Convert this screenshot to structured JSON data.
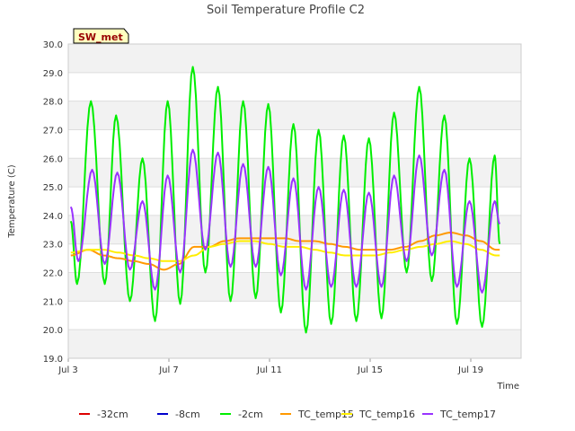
{
  "chart_data": {
    "type": "line",
    "title": "Soil Temperature Profile C2",
    "xlabel": "Time",
    "ylabel": "Temperature (C)",
    "station_label": "SW_met",
    "ylim": [
      19.0,
      30.0
    ],
    "xlim": [
      "2024-07-03",
      "2024-07-21"
    ],
    "yticks": [
      "19.0",
      "20.0",
      "21.0",
      "22.0",
      "23.0",
      "24.0",
      "25.0",
      "26.0",
      "27.0",
      "28.0",
      "29.0",
      "30.0"
    ],
    "xticks": [
      {
        "label": "Jul 3",
        "date": "2024-07-03"
      },
      {
        "label": "Jul 7",
        "date": "2024-07-07"
      },
      {
        "label": "Jul 11",
        "date": "2024-07-11"
      },
      {
        "label": "Jul 15",
        "date": "2024-07-15"
      },
      {
        "label": "Jul 19",
        "date": "2024-07-19"
      }
    ],
    "grid": true,
    "legend_position": "bottom",
    "x_start": "2024-07-03",
    "series": [
      {
        "name": "-32cm",
        "color": "#dd0000",
        "values": []
      },
      {
        "name": "-8cm",
        "color": "#0000cc",
        "values": []
      },
      {
        "name": "-2cm",
        "color": "#00ee00",
        "values": [
          [
            0.1,
            23.8
          ],
          [
            0.35,
            21.6
          ],
          [
            0.9,
            28.0
          ],
          [
            1.45,
            21.6
          ],
          [
            1.9,
            27.5
          ],
          [
            2.45,
            21.0
          ],
          [
            2.95,
            26.0
          ],
          [
            3.45,
            20.3
          ],
          [
            3.95,
            28.0
          ],
          [
            4.45,
            20.9
          ],
          [
            4.95,
            29.2
          ],
          [
            5.45,
            22.0
          ],
          [
            5.95,
            28.5
          ],
          [
            6.45,
            21.0
          ],
          [
            6.95,
            28.0
          ],
          [
            7.45,
            21.1
          ],
          [
            7.95,
            27.9
          ],
          [
            8.45,
            20.6
          ],
          [
            8.95,
            27.2
          ],
          [
            9.45,
            19.9
          ],
          [
            9.95,
            27.0
          ],
          [
            10.45,
            20.2
          ],
          [
            10.95,
            26.8
          ],
          [
            11.45,
            20.3
          ],
          [
            11.95,
            26.7
          ],
          [
            12.45,
            20.4
          ],
          [
            12.95,
            27.6
          ],
          [
            13.45,
            22.0
          ],
          [
            13.95,
            28.5
          ],
          [
            14.45,
            21.7
          ],
          [
            14.95,
            27.5
          ],
          [
            15.45,
            20.2
          ],
          [
            15.95,
            26.0
          ],
          [
            16.45,
            20.1
          ],
          [
            16.95,
            26.1
          ],
          [
            17.15,
            23.0
          ]
        ]
      },
      {
        "name": "TC_temp15",
        "color": "#ff9900",
        "values": [
          [
            0.1,
            22.6
          ],
          [
            0.8,
            22.8
          ],
          [
            1.4,
            22.6
          ],
          [
            2.0,
            22.5
          ],
          [
            2.6,
            22.4
          ],
          [
            3.2,
            22.3
          ],
          [
            3.8,
            22.1
          ],
          [
            4.4,
            22.3
          ],
          [
            5.0,
            22.9
          ],
          [
            5.6,
            22.9
          ],
          [
            6.2,
            23.1
          ],
          [
            6.8,
            23.2
          ],
          [
            7.4,
            23.2
          ],
          [
            8.0,
            23.2
          ],
          [
            8.6,
            23.2
          ],
          [
            9.2,
            23.1
          ],
          [
            9.8,
            23.1
          ],
          [
            10.4,
            23.0
          ],
          [
            11.0,
            22.9
          ],
          [
            11.6,
            22.8
          ],
          [
            12.2,
            22.8
          ],
          [
            12.8,
            22.8
          ],
          [
            13.4,
            22.9
          ],
          [
            14.0,
            23.1
          ],
          [
            14.6,
            23.3
          ],
          [
            15.2,
            23.4
          ],
          [
            15.8,
            23.3
          ],
          [
            16.4,
            23.1
          ],
          [
            17.0,
            22.8
          ],
          [
            17.15,
            22.8
          ]
        ]
      },
      {
        "name": "TC_temp16",
        "color": "#ffee00",
        "values": [
          [
            0.1,
            22.7
          ],
          [
            0.8,
            22.8
          ],
          [
            1.4,
            22.8
          ],
          [
            2.0,
            22.7
          ],
          [
            2.6,
            22.6
          ],
          [
            3.2,
            22.5
          ],
          [
            3.8,
            22.4
          ],
          [
            4.4,
            22.4
          ],
          [
            5.0,
            22.6
          ],
          [
            5.6,
            22.9
          ],
          [
            6.2,
            23.0
          ],
          [
            6.8,
            23.1
          ],
          [
            7.4,
            23.1
          ],
          [
            8.0,
            23.0
          ],
          [
            8.6,
            22.9
          ],
          [
            9.2,
            22.9
          ],
          [
            9.8,
            22.8
          ],
          [
            10.4,
            22.7
          ],
          [
            11.0,
            22.6
          ],
          [
            11.6,
            22.6
          ],
          [
            12.2,
            22.6
          ],
          [
            12.8,
            22.7
          ],
          [
            13.4,
            22.8
          ],
          [
            14.0,
            22.9
          ],
          [
            14.6,
            23.0
          ],
          [
            15.2,
            23.1
          ],
          [
            15.8,
            23.0
          ],
          [
            16.4,
            22.8
          ],
          [
            17.0,
            22.6
          ],
          [
            17.15,
            22.6
          ]
        ]
      },
      {
        "name": "TC_temp17",
        "color": "#9933ff",
        "values": [
          [
            0.1,
            24.3
          ],
          [
            0.4,
            22.4
          ],
          [
            0.95,
            25.6
          ],
          [
            1.45,
            22.3
          ],
          [
            1.95,
            25.5
          ],
          [
            2.45,
            22.1
          ],
          [
            2.95,
            24.5
          ],
          [
            3.45,
            21.4
          ],
          [
            3.95,
            25.4
          ],
          [
            4.45,
            22.0
          ],
          [
            4.95,
            26.3
          ],
          [
            5.45,
            22.8
          ],
          [
            5.95,
            26.2
          ],
          [
            6.45,
            22.2
          ],
          [
            6.95,
            25.8
          ],
          [
            7.45,
            22.2
          ],
          [
            7.95,
            25.7
          ],
          [
            8.45,
            21.9
          ],
          [
            8.95,
            25.3
          ],
          [
            9.45,
            21.4
          ],
          [
            9.95,
            25.0
          ],
          [
            10.45,
            21.5
          ],
          [
            10.95,
            24.9
          ],
          [
            11.45,
            21.5
          ],
          [
            11.95,
            24.8
          ],
          [
            12.45,
            21.5
          ],
          [
            12.95,
            25.4
          ],
          [
            13.45,
            22.4
          ],
          [
            13.95,
            26.1
          ],
          [
            14.45,
            22.6
          ],
          [
            14.95,
            25.6
          ],
          [
            15.45,
            21.5
          ],
          [
            15.95,
            24.5
          ],
          [
            16.45,
            21.3
          ],
          [
            16.95,
            24.5
          ],
          [
            17.15,
            23.7
          ]
        ]
      }
    ]
  }
}
